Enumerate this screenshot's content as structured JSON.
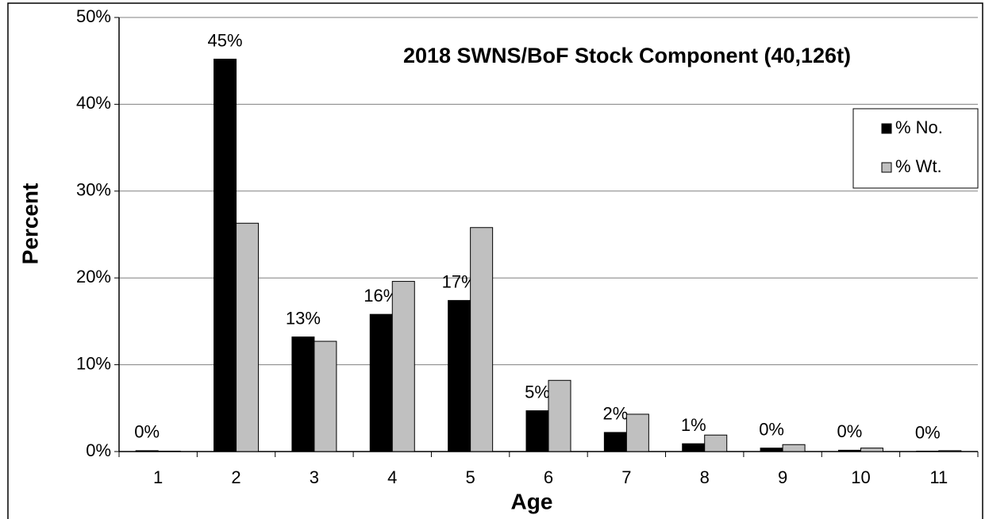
{
  "chart_data": {
    "type": "bar",
    "title": "2018 SWNS/BoF Stock Component (40,126t)",
    "x_label": "Age",
    "y_label": "Percent",
    "categories": [
      "1",
      "2",
      "3",
      "4",
      "5",
      "6",
      "7",
      "8",
      "9",
      "10",
      "11"
    ],
    "series": [
      {
        "name": "% No.",
        "color": "#000000",
        "values": [
          0.1,
          45.2,
          13.2,
          15.8,
          17.4,
          4.7,
          2.2,
          0.9,
          0.4,
          0.15,
          0.05
        ],
        "value_labels": [
          "0%",
          "45%",
          "13%",
          "16%",
          "17%",
          "5%",
          "2%",
          "1%",
          "0%",
          "0%",
          "0%"
        ]
      },
      {
        "name": "% Wt.",
        "color": "#c0c0c0",
        "values": [
          0.05,
          26.3,
          12.7,
          19.6,
          25.8,
          8.2,
          4.3,
          1.9,
          0.8,
          0.4,
          0.1
        ]
      }
    ],
    "ylim": [
      0,
      50
    ],
    "yticks": [
      {
        "value": 0,
        "label": "0%"
      },
      {
        "value": 10,
        "label": "10%"
      },
      {
        "value": 20,
        "label": "20%"
      },
      {
        "value": 30,
        "label": "30%"
      },
      {
        "value": 40,
        "label": "40%"
      },
      {
        "value": 50,
        "label": "50%"
      }
    ],
    "grid": true,
    "legend": "upper right"
  }
}
